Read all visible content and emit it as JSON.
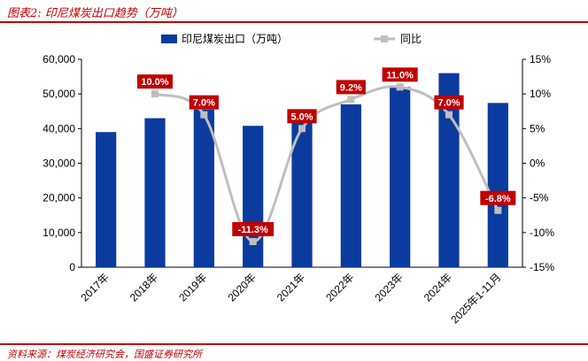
{
  "figure": {
    "title": "图表2:  印尼煤炭出口趋势（万吨）",
    "source": "资料来源：煤炭经济研究会，国盛证券研究所"
  },
  "chart_data": {
    "type": "bar",
    "categories": [
      "2017年",
      "2018年",
      "2019年",
      "2020年",
      "2021年",
      "2022年",
      "2023年",
      "2024年",
      "2025年1-11月"
    ],
    "series": [
      {
        "name": "印尼煤炭出口（万吨）",
        "type": "bar",
        "axis": "left",
        "color": "#0b3b9e",
        "values": [
          39000,
          43000,
          45500,
          40800,
          43500,
          47000,
          52000,
          56000,
          47400
        ]
      },
      {
        "name": "同比",
        "type": "line",
        "axis": "right",
        "color": "#bfbfbf",
        "values": [
          null,
          10.0,
          7.0,
          -11.3,
          5.0,
          9.2,
          11.0,
          7.0,
          -6.8
        ],
        "labels": [
          "",
          "10.0%",
          "7.0%",
          "-11.3%",
          "5.0%",
          "9.2%",
          "11.0%",
          "7.0%",
          "-6.8%"
        ]
      }
    ],
    "y_left": {
      "min": 0,
      "max": 60000,
      "step": 10000,
      "ticks": [
        "0",
        "10,000",
        "20,000",
        "30,000",
        "40,000",
        "50,000",
        "60,000"
      ]
    },
    "y_right": {
      "min": -15,
      "max": 15,
      "step": 5,
      "ticks": [
        "-15%",
        "-10%",
        "-5%",
        "0%",
        "5%",
        "10%",
        "15%"
      ]
    },
    "legend_position": "top-center",
    "grid": false,
    "label_color": "#c00000"
  }
}
